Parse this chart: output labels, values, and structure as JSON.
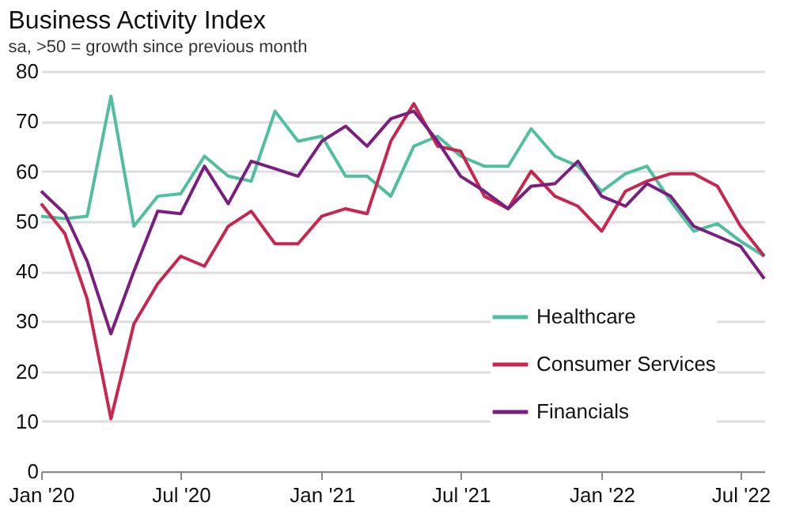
{
  "chart_data": {
    "type": "line",
    "title": "Business Activity Index",
    "subtitle": "sa, >50 = growth since previous month",
    "x": [
      "2020-01",
      "2020-02",
      "2020-03",
      "2020-04",
      "2020-05",
      "2020-06",
      "2020-07",
      "2020-08",
      "2020-09",
      "2020-10",
      "2020-11",
      "2020-12",
      "2021-01",
      "2021-02",
      "2021-03",
      "2021-04",
      "2021-05",
      "2021-06",
      "2021-07",
      "2021-08",
      "2021-09",
      "2021-10",
      "2021-11",
      "2021-12",
      "2022-01",
      "2022-02",
      "2022-03",
      "2022-04",
      "2022-05",
      "2022-06",
      "2022-07",
      "2022-08"
    ],
    "series": [
      {
        "name": "Healthcare",
        "color": "#4fbf9f",
        "values": [
          51,
          50.5,
          51,
          75,
          49,
          55,
          55.5,
          63,
          59,
          58,
          72,
          66,
          67,
          59,
          59,
          55,
          65,
          67,
          63,
          61,
          61,
          68.5,
          63,
          61,
          56,
          59.5,
          61,
          54,
          48,
          49.5,
          46,
          43
        ]
      },
      {
        "name": "Consumer Services",
        "color": "#c8264f",
        "values": [
          53.5,
          47.5,
          34.5,
          10.5,
          29.5,
          37.5,
          43,
          41,
          49,
          52,
          45.5,
          45.5,
          51,
          52.5,
          51.5,
          66,
          73.5,
          65,
          64,
          55,
          52.5,
          60,
          55,
          53,
          48,
          56,
          58,
          59.5,
          59.5,
          57,
          49,
          43
        ]
      },
      {
        "name": "Financials",
        "color": "#7b1f7f",
        "values": [
          56,
          51.5,
          42,
          27.5,
          40,
          52,
          51.5,
          61,
          53.5,
          62,
          60.5,
          59,
          66,
          69,
          65,
          70.5,
          72,
          66,
          59,
          56,
          52.5,
          57,
          57.5,
          62,
          55,
          53,
          57.5,
          55,
          49,
          47,
          45,
          38.5
        ]
      }
    ],
    "xlim": [
      "2020-01",
      "2022-08"
    ],
    "xticks": [
      {
        "value": "2020-01",
        "label": "Jan '20"
      },
      {
        "value": "2020-07",
        "label": "Jul '20"
      },
      {
        "value": "2021-01",
        "label": "Jan '21"
      },
      {
        "value": "2021-07",
        "label": "Jul '21"
      },
      {
        "value": "2022-01",
        "label": "Jan '22"
      },
      {
        "value": "2022-07",
        "label": "Jul '22"
      }
    ],
    "ylim": [
      0,
      80
    ],
    "yticks": [
      0,
      10,
      20,
      30,
      40,
      50,
      60,
      70,
      80
    ],
    "grid": "y",
    "legend": "bottom right",
    "marker": "none",
    "line_style": "solid"
  }
}
